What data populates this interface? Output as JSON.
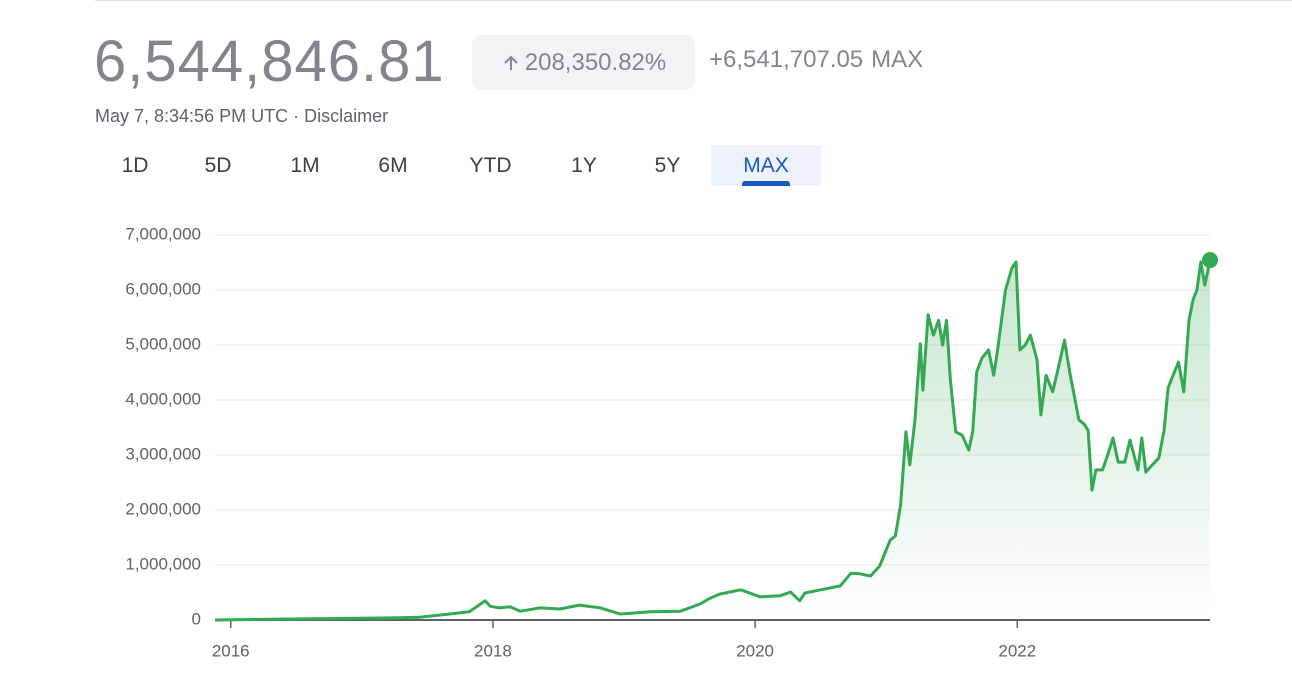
{
  "header": {
    "price": "6,544,846.81",
    "change_percent": "208,350.82%",
    "change_abs": "+6,541,707.05",
    "period": "MAX",
    "timestamp": "May 7, 8:34:56 PM UTC",
    "separator": "·",
    "disclaimer": "Disclaimer"
  },
  "tabs": {
    "items": [
      "1D",
      "5D",
      "1M",
      "6M",
      "YTD",
      "1Y",
      "5Y",
      "MAX"
    ],
    "selected": 7
  },
  "chart_data": {
    "type": "line",
    "x": [
      2015.88,
      2016.53,
      2017.29,
      2017.44,
      2017.67,
      2017.82,
      2017.94,
      2017.98,
      2018.05,
      2018.13,
      2018.21,
      2018.36,
      2018.51,
      2018.66,
      2018.82,
      2018.97,
      2019.2,
      2019.43,
      2019.58,
      2019.66,
      2019.73,
      2019.89,
      2020.04,
      2020.19,
      2020.27,
      2020.34,
      2020.38,
      2020.5,
      2020.65,
      2020.73,
      2020.8,
      2020.88,
      2020.95,
      2021.03,
      2021.07,
      2021.11,
      2021.15,
      2021.18,
      2021.22,
      2021.26,
      2021.28,
      2021.32,
      2021.36,
      2021.4,
      2021.43,
      2021.46,
      2021.49,
      2021.53,
      2021.58,
      2021.63,
      2021.66,
      2021.69,
      2021.73,
      2021.78,
      2021.82,
      2021.85,
      2021.91,
      2021.96,
      2021.99,
      2022.02,
      2022.06,
      2022.1,
      2022.15,
      2022.18,
      2022.22,
      2022.27,
      2022.31,
      2022.36,
      2022.4,
      2022.47,
      2022.51,
      2022.54,
      2022.57,
      2022.6,
      2022.65,
      2022.69,
      2022.73,
      2022.77,
      2022.82,
      2022.86,
      2022.92,
      2022.95,
      2022.98,
      2023.03,
      2023.08,
      2023.12,
      2023.15,
      2023.18,
      2023.23,
      2023.27,
      2023.31,
      2023.34,
      2023.37,
      2023.4,
      2023.43,
      2023.47
    ],
    "series": [
      {
        "color": "#34a853",
        "values": [
          0,
          20000,
          40000,
          50000,
          110000,
          150000,
          350000,
          250000,
          220000,
          240000,
          160000,
          220000,
          200000,
          270000,
          220000,
          110000,
          150000,
          160000,
          290000,
          400000,
          470000,
          550000,
          420000,
          440000,
          510000,
          350000,
          490000,
          550000,
          620000,
          850000,
          840000,
          800000,
          980000,
          1450000,
          1530000,
          2090000,
          3420000,
          2820000,
          3640000,
          5020000,
          4180000,
          5550000,
          5180000,
          5450000,
          5000000,
          5450000,
          4360000,
          3420000,
          3360000,
          3090000,
          3420000,
          4510000,
          4760000,
          4910000,
          4450000,
          4910000,
          6000000,
          6400000,
          6510000,
          4910000,
          5000000,
          5180000,
          4730000,
          3730000,
          4450000,
          4150000,
          4550000,
          5090000,
          4510000,
          3640000,
          3560000,
          3450000,
          2360000,
          2730000,
          2730000,
          3000000,
          3310000,
          2870000,
          2870000,
          3270000,
          2730000,
          3310000,
          2690000,
          2820000,
          2950000,
          3450000,
          4220000,
          4400000,
          4690000,
          4150000,
          5450000,
          5820000,
          6000000,
          6510000,
          6090000,
          6544846.81
        ]
      }
    ],
    "xlim": [
      2015.88,
      2023.47
    ],
    "xticks": [
      2016,
      2018,
      2020,
      2022
    ],
    "ylim": [
      0,
      7000000
    ],
    "yticks": [
      0,
      {
        "value": 1000000,
        "label": "1,000,000"
      },
      {
        "value": 2000000,
        "label": "2,000,000"
      },
      {
        "value": 3000000,
        "label": "3,000,000"
      },
      {
        "value": 4000000,
        "label": "4,000,000"
      },
      {
        "value": 5000000,
        "label": "5,000,000"
      },
      {
        "value": 6000000,
        "label": "6,000,000"
      },
      {
        "value": 7000000,
        "label": "7,000,000"
      }
    ],
    "grid": true
  }
}
